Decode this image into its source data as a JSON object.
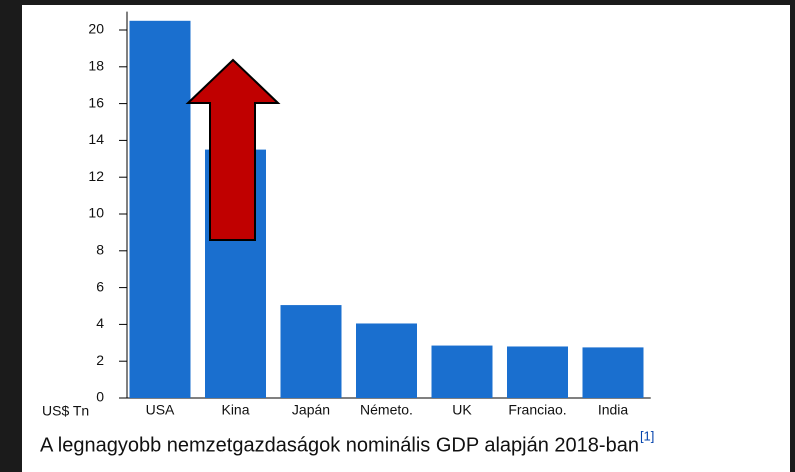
{
  "chart_data": {
    "type": "bar",
    "y_label": "US$ Tn",
    "caption": "A legnagyobb nemzetgazdaságok nominális GDP alapján 2018-ban",
    "caption_ref": "[1]",
    "categories": [
      "USA",
      "Kina",
      "Japán",
      "Németo.",
      "UK",
      "Franciao.",
      "India"
    ],
    "values": [
      20.5,
      13.5,
      5.05,
      4.05,
      2.85,
      2.8,
      2.75
    ],
    "color": "#1a6fcf",
    "ylim": [
      0,
      21
    ],
    "yticks": [
      0,
      2,
      4,
      6,
      8,
      10,
      12,
      14,
      16,
      18,
      20
    ]
  }
}
